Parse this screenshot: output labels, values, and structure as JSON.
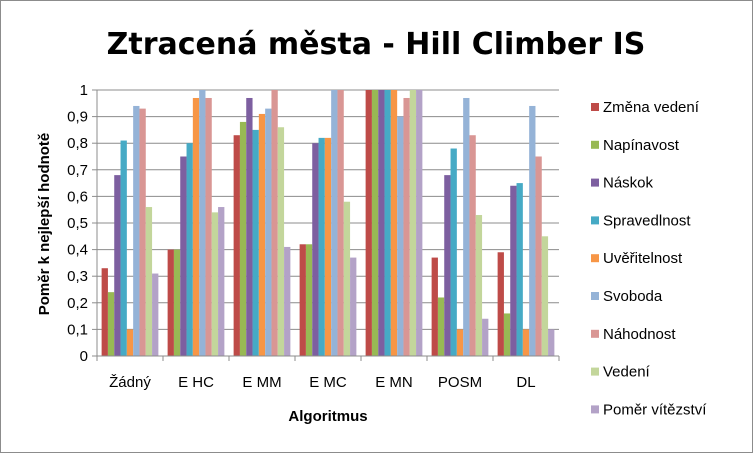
{
  "chart_data": {
    "type": "bar",
    "title": "Ztracená města - Hill Climber IS",
    "xlabel": "Algoritmus",
    "ylabel": "Poměr k nejlepší hodnotě",
    "ylim": [
      0,
      1
    ],
    "yticks": [
      "0",
      "0,1",
      "0,2",
      "0,3",
      "0,4",
      "0,5",
      "0,6",
      "0,7",
      "0,8",
      "0,9",
      "1"
    ],
    "grid": true,
    "legend_position": "right",
    "categories": [
      "Žádný",
      "E HC",
      "E MM",
      "E MC",
      "E MN",
      "POSM",
      "DL"
    ],
    "series": [
      {
        "name": "Změna vedení",
        "color": "#BE4B48",
        "values": [
          0.33,
          0.4,
          0.83,
          0.42,
          1.0,
          0.37,
          0.39
        ]
      },
      {
        "name": "Napínavost",
        "color": "#98B954",
        "values": [
          0.24,
          0.4,
          0.88,
          0.42,
          1.0,
          0.22,
          0.16
        ]
      },
      {
        "name": "Náskok",
        "color": "#7D5FA0",
        "values": [
          0.68,
          0.75,
          0.97,
          0.8,
          1.0,
          0.68,
          0.64
        ]
      },
      {
        "name": "Spravedlnost",
        "color": "#46AAC5",
        "values": [
          0.81,
          0.8,
          0.85,
          0.82,
          1.0,
          0.78,
          0.65
        ]
      },
      {
        "name": "Uvěřitelnost",
        "color": "#F79646",
        "values": [
          0.1,
          0.97,
          0.91,
          0.82,
          1.0,
          0.1,
          0.1
        ]
      },
      {
        "name": "Svoboda",
        "color": "#95B3D7",
        "values": [
          0.94,
          1.0,
          0.93,
          1.0,
          0.9,
          0.97,
          0.94
        ]
      },
      {
        "name": "Náhodnost",
        "color": "#D99694",
        "values": [
          0.93,
          0.97,
          1.0,
          1.0,
          0.97,
          0.83,
          0.75
        ]
      },
      {
        "name": "Vedení",
        "color": "#C3D69B",
        "values": [
          0.56,
          0.54,
          0.86,
          0.58,
          1.0,
          0.53,
          0.45
        ]
      },
      {
        "name": "Poměr vítězství",
        "color": "#B3A2C7",
        "values": [
          0.31,
          0.56,
          0.41,
          0.37,
          1.0,
          0.14,
          0.1
        ]
      }
    ]
  }
}
